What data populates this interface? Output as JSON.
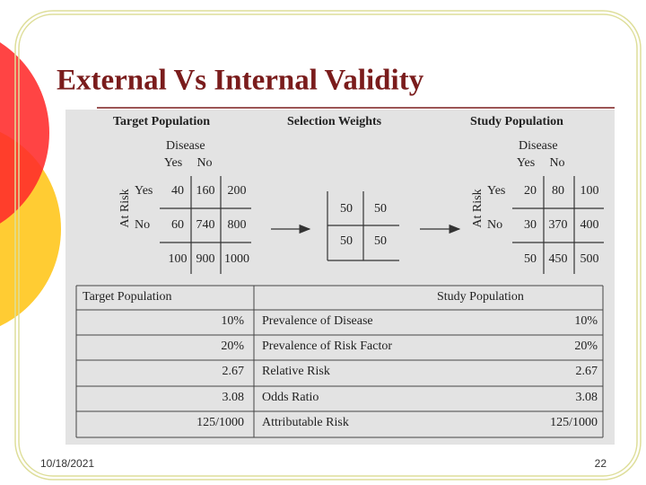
{
  "title": "External Vs Internal Validity",
  "panel": {
    "headers": [
      "Target Population",
      "Selection Weights",
      "Study Population"
    ],
    "target": {
      "disease_label": "Disease",
      "col_labels": [
        "Yes",
        "No"
      ],
      "row_axis": "At Risk",
      "row_labels": [
        "Yes",
        "No"
      ],
      "rows": [
        [
          40,
          160,
          200
        ],
        [
          60,
          740,
          800
        ],
        [
          100,
          900,
          1000
        ]
      ]
    },
    "weights": [
      [
        50,
        50
      ],
      [
        50,
        50
      ]
    ],
    "study": {
      "disease_label": "Disease",
      "col_labels": [
        "Yes",
        "No"
      ],
      "row_axis": "At Risk",
      "row_labels": [
        "Yes",
        "No"
      ],
      "rows": [
        [
          20,
          80,
          100
        ],
        [
          30,
          370,
          400
        ],
        [
          50,
          450,
          500
        ]
      ]
    }
  },
  "comparison": {
    "header": [
      "Target Population",
      "Study Population"
    ],
    "rows": [
      [
        "10%",
        "Prevalence of Disease",
        "10%"
      ],
      [
        "20%",
        "Prevalence of Risk Factor",
        "20%"
      ],
      [
        2.67,
        "Relative Risk",
        2.67
      ],
      [
        3.08,
        "Odds Ratio",
        3.08
      ],
      [
        "125/1000",
        "Attributable Risk",
        "125/1000"
      ]
    ]
  },
  "footer": {
    "date": "10/18/2021",
    "page": "22"
  }
}
